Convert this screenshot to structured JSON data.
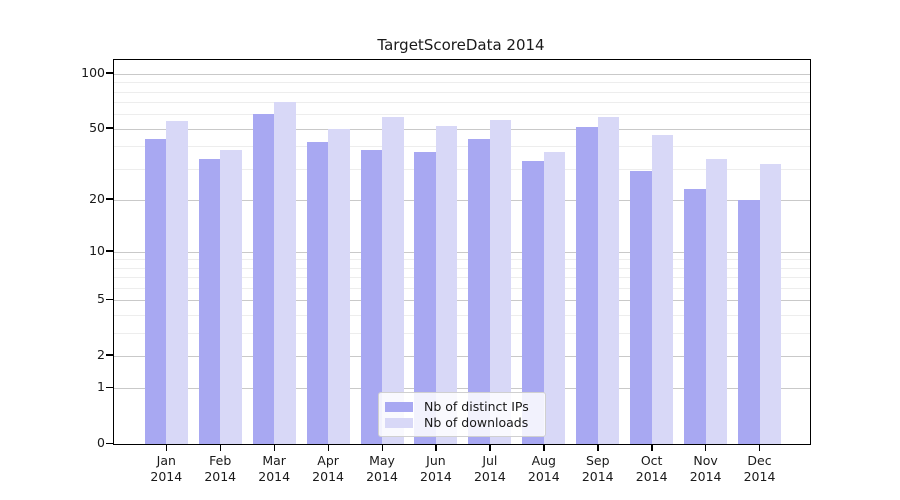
{
  "figure": {
    "title": "TargetScoreData 2014"
  },
  "chart_data": {
    "type": "bar",
    "title": "TargetScoreData 2014",
    "categories": [
      "Jan",
      "Feb",
      "Mar",
      "Apr",
      "May",
      "Jun",
      "Jul",
      "Aug",
      "Sep",
      "Oct",
      "Nov",
      "Dec"
    ],
    "category_year": "2014",
    "series": [
      {
        "name": "Nb of distinct IPs",
        "color": "#a8a8f2",
        "values": [
          44,
          34,
          60,
          42,
          38,
          37,
          44,
          33,
          51,
          29,
          23,
          20
        ]
      },
      {
        "name": "Nb of downloads",
        "color": "#d8d8f7",
        "values": [
          55,
          38,
          70,
          50,
          58,
          52,
          56,
          37,
          58,
          46,
          34,
          32
        ]
      }
    ],
    "y_axis": {
      "scale": "log10(value+1)",
      "ticks": [
        0,
        1,
        2,
        5,
        10,
        20,
        50,
        100
      ],
      "minor_gridlines": [
        3,
        4,
        6,
        7,
        8,
        9,
        30,
        40,
        60,
        70,
        80,
        90
      ],
      "ylim": [
        0,
        119
      ],
      "grid": true
    },
    "x_axis": {
      "grid": false
    },
    "legend": {
      "position": "lower center",
      "entries": [
        "Nb of distinct IPs",
        "Nb of downloads"
      ]
    }
  }
}
